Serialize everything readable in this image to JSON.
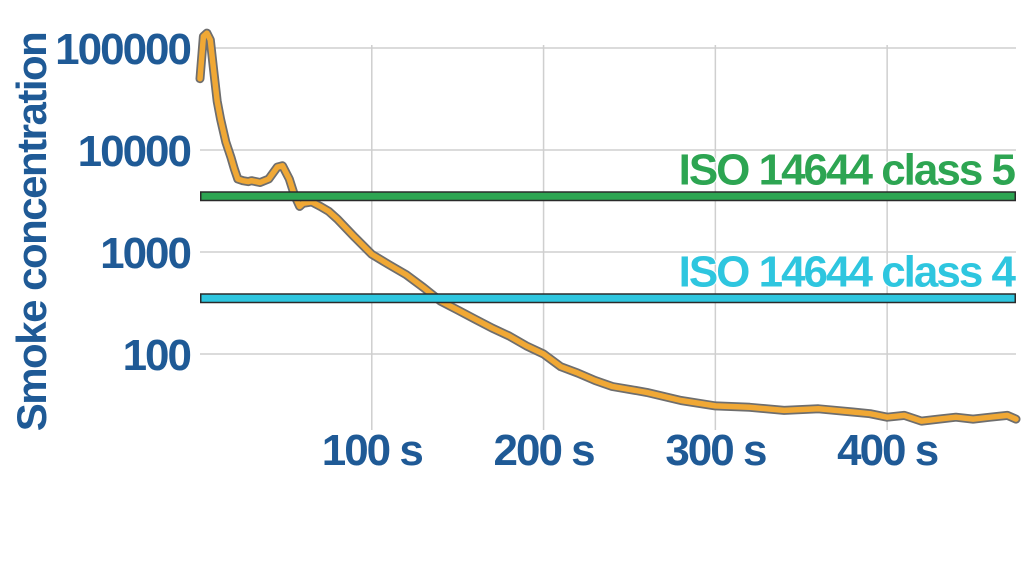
{
  "chart_data": {
    "type": "line",
    "ylabel": "Smoke concentration",
    "xlabel": "",
    "y_scale": "log",
    "ylim": [
      20,
      140000
    ],
    "xlim": [
      0,
      475
    ],
    "x_ticks": [
      {
        "value": 100,
        "label": "100 s"
      },
      {
        "value": 200,
        "label": "200 s"
      },
      {
        "value": 300,
        "label": "300 s"
      },
      {
        "value": 400,
        "label": "400 s"
      }
    ],
    "y_ticks": [
      {
        "value": 100,
        "label": "100"
      },
      {
        "value": 1000,
        "label": "1000"
      },
      {
        "value": 10000,
        "label": "10000"
      },
      {
        "value": 100000,
        "label": "100000"
      }
    ],
    "grid": true,
    "series": [
      {
        "color": "#f0a835",
        "x": [
          0,
          2,
          4,
          6,
          8,
          10,
          12,
          15,
          18,
          20,
          22,
          25,
          28,
          30,
          35,
          40,
          45,
          48,
          52,
          55,
          58,
          60,
          65,
          70,
          75,
          80,
          90,
          100,
          110,
          120,
          130,
          140,
          150,
          160,
          170,
          180,
          190,
          200,
          210,
          220,
          230,
          240,
          250,
          260,
          280,
          300,
          320,
          340,
          360,
          380,
          390,
          400,
          410,
          420,
          430,
          440,
          450,
          460,
          470,
          475
        ],
        "y": [
          50000,
          130000,
          140000,
          120000,
          60000,
          30000,
          20000,
          12000,
          8500,
          6500,
          5200,
          5000,
          4900,
          5000,
          4800,
          5200,
          6800,
          7000,
          5200,
          3600,
          2800,
          3000,
          3100,
          2800,
          2500,
          2100,
          1400,
          950,
          750,
          600,
          450,
          330,
          270,
          220,
          180,
          150,
          120,
          100,
          75,
          65,
          55,
          48,
          45,
          42,
          35,
          31,
          30,
          28,
          29,
          27,
          26,
          24,
          25,
          22,
          23,
          24,
          23,
          24,
          25,
          23
        ]
      }
    ],
    "reference_lines": [
      {
        "name": "ISO 14644 class 5",
        "value": 3520,
        "color": "#2da552"
      },
      {
        "name": "ISO 14644 class 4",
        "value": 352,
        "color": "#2ec6df"
      }
    ]
  }
}
